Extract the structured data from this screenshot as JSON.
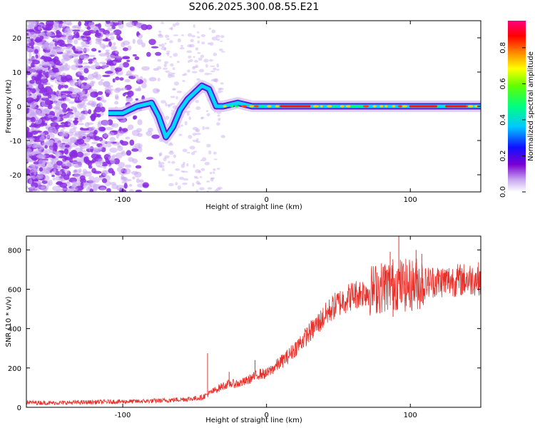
{
  "title": "S206.2025.300.08.55.E21",
  "colors": {
    "line": "#e8302a",
    "frame": "#000000",
    "speckle": "#8a2be2",
    "speckle_light": "#c8a8f0"
  },
  "chart_data": [
    {
      "type": "heatmap",
      "name": "spectrogram",
      "xlabel": "Height of straight line (km)",
      "ylabel": "Frequency (Hz)",
      "xlim": [
        -167,
        149
      ],
      "ylim": [
        -25,
        25
      ],
      "xticks": [
        -100,
        0,
        100
      ],
      "xtick_labels": [
        "-100",
        "0",
        "100"
      ],
      "yticks": [
        -20,
        -10,
        0,
        10,
        20
      ],
      "ytick_labels": [
        "-20",
        "-10",
        "0",
        "10",
        "20"
      ],
      "colorbar": {
        "label": "Normalized spectral amplitude",
        "range": [
          0,
          0.95
        ],
        "ticks": [
          0.0,
          0.2,
          0.4,
          0.6,
          0.8
        ],
        "tick_labels": [
          "0.0",
          "0.2",
          "0.4",
          "0.6",
          "0.8"
        ],
        "colormap": "rainbow (white-purple-blue-cyan-green-yellow-red-magenta)"
      },
      "ridge": {
        "description": "dominant frequency track vs height",
        "x": [
          -110,
          -100,
          -90,
          -80,
          -75,
          -70,
          -65,
          -60,
          -55,
          -50,
          -45,
          -40,
          -35,
          -30,
          -20,
          -10,
          0,
          20,
          40,
          60,
          80,
          100,
          120,
          149
        ],
        "y": [
          -2,
          -2,
          0,
          1,
          -3,
          -9,
          -6,
          -1,
          2,
          4,
          6,
          5,
          0,
          0,
          1,
          0,
          0,
          0,
          0,
          0,
          0,
          0,
          0,
          0
        ]
      }
    },
    {
      "type": "line",
      "name": "snr",
      "xlabel": "Height of straight line (km)",
      "ylabel": "SNR (10 * v/v)",
      "xlim": [
        -167,
        149
      ],
      "ylim": [
        0,
        870
      ],
      "xticks": [
        -100,
        0,
        100
      ],
      "xtick_labels": [
        "-100",
        "0",
        "100"
      ],
      "yticks": [
        0,
        200,
        400,
        600,
        800
      ],
      "ytick_labels": [
        "0",
        "200",
        "400",
        "600",
        "800"
      ],
      "series": [
        {
          "name": "SNR",
          "x": [
            -167,
            -150,
            -130,
            -110,
            -90,
            -70,
            -60,
            -50,
            -45,
            -40,
            -35,
            -30,
            -25,
            -20,
            -15,
            -10,
            -5,
            0,
            5,
            10,
            15,
            20,
            25,
            30,
            35,
            40,
            45,
            50,
            55,
            60,
            65,
            70,
            75,
            80,
            85,
            90,
            95,
            100,
            105,
            110,
            115,
            120,
            130,
            140,
            149
          ],
          "y": [
            25,
            22,
            25,
            28,
            30,
            35,
            40,
            45,
            50,
            70,
            90,
            110,
            120,
            120,
            130,
            150,
            170,
            170,
            200,
            230,
            260,
            300,
            340,
            380,
            420,
            460,
            500,
            530,
            550,
            570,
            580,
            590,
            600,
            610,
            620,
            630,
            620,
            620,
            630,
            630,
            640,
            640,
            645,
            650,
            655
          ]
        }
      ],
      "spikes": [
        {
          "x": -41,
          "y": 275
        },
        {
          "x": -26,
          "y": 180
        },
        {
          "x": -8,
          "y": 240
        },
        {
          "x": 74,
          "y": 640
        },
        {
          "x": 82,
          "y": 720
        },
        {
          "x": 86,
          "y": 790
        },
        {
          "x": 88,
          "y": 460
        },
        {
          "x": 92,
          "y": 870
        },
        {
          "x": 96,
          "y": 690
        },
        {
          "x": 104,
          "y": 800
        },
        {
          "x": 108,
          "y": 780
        }
      ]
    }
  ]
}
